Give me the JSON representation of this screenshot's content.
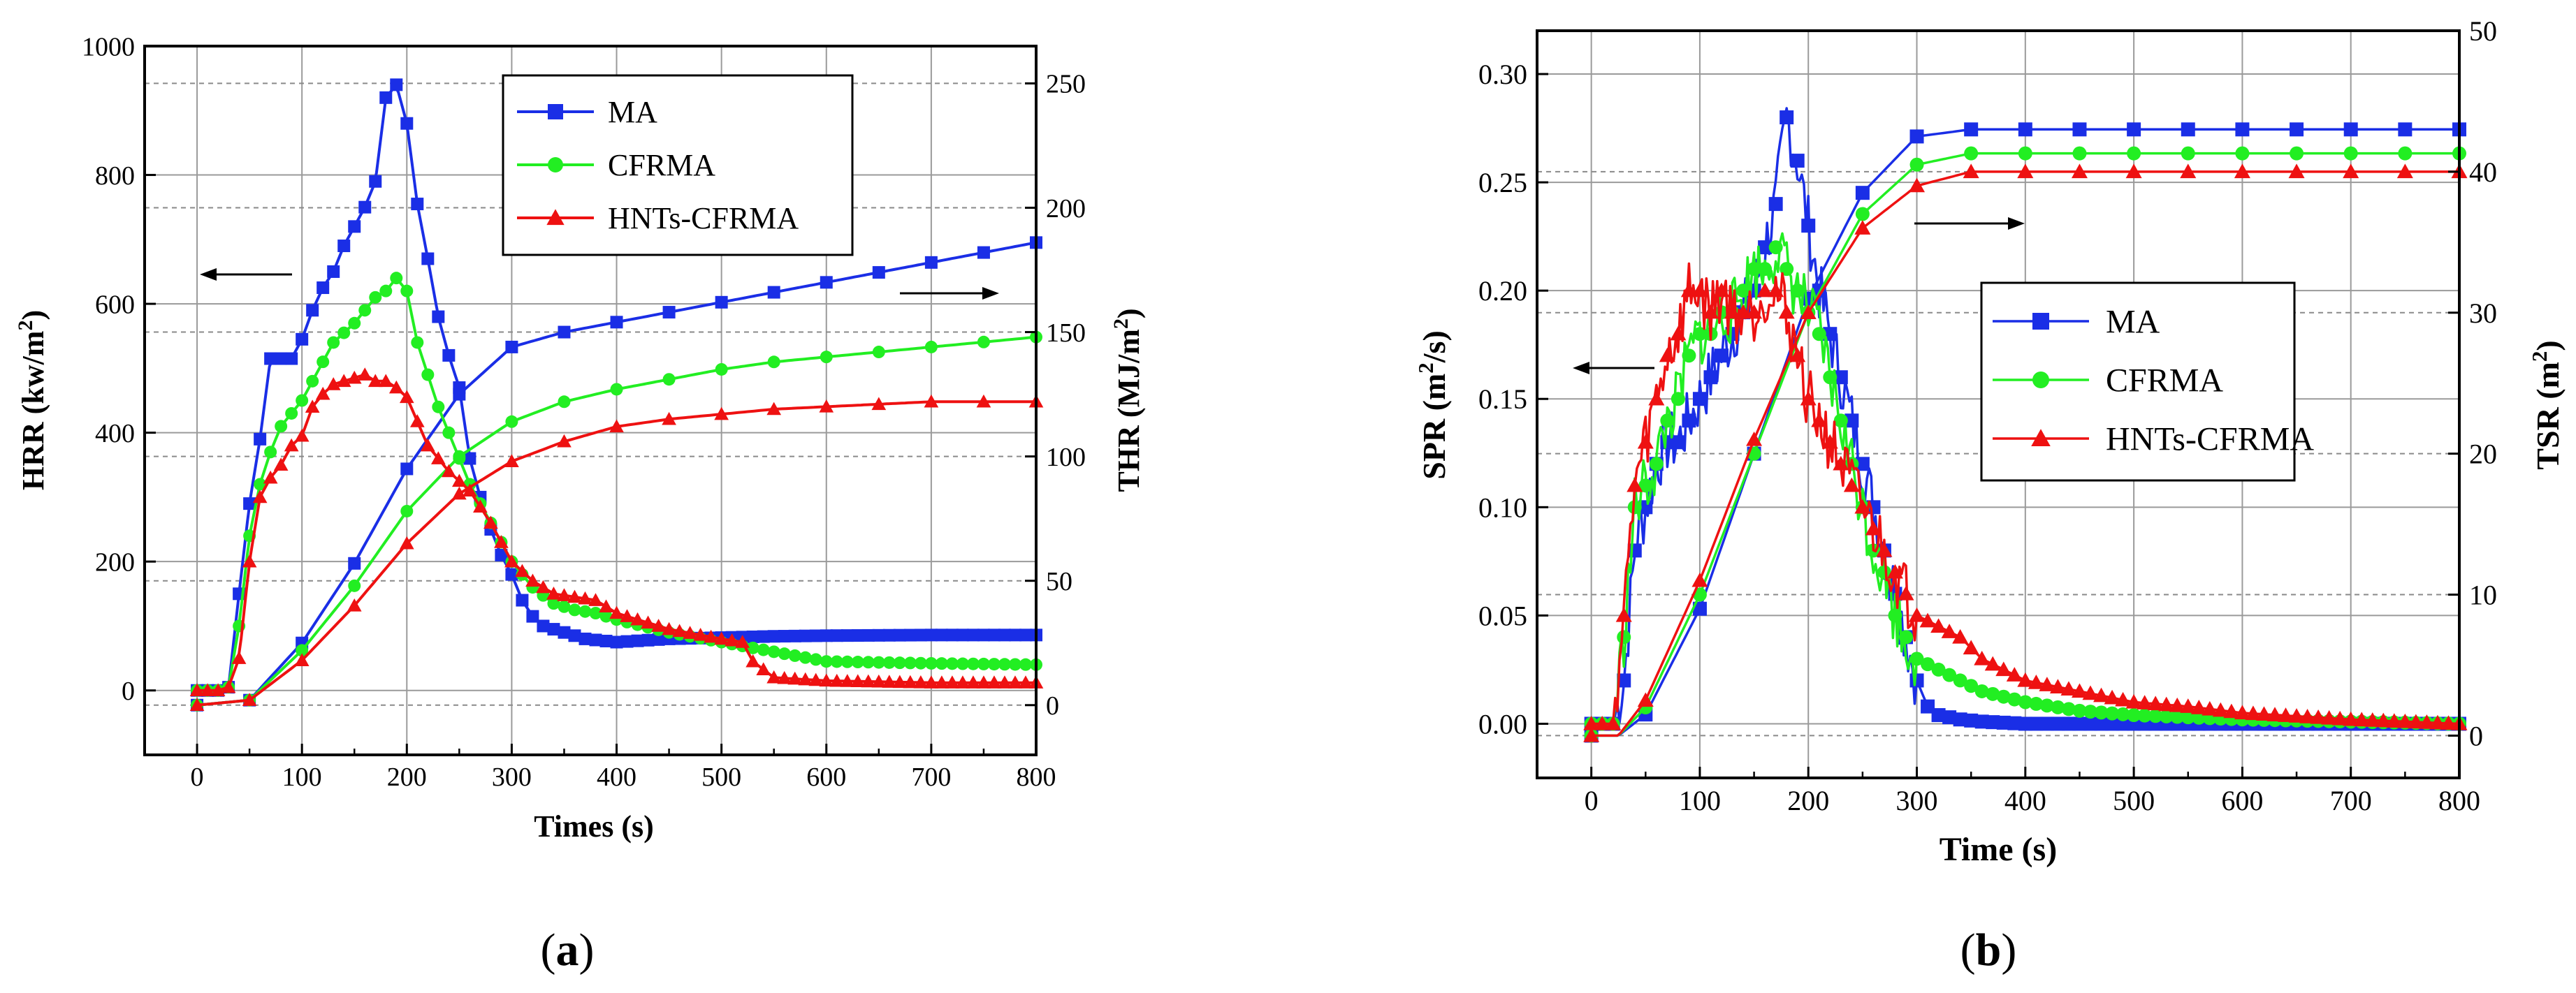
{
  "chart_data": [
    {
      "id": "a",
      "type": "line",
      "panel_label": "(a)",
      "panel_label_letter": "a",
      "colors": {
        "MA": "#1a2ee6",
        "CFRMA": "#22ee22",
        "HNTs-CFRMA": "#ee1111"
      },
      "xlabel": "Times (s)",
      "ylabel_left": "HRR (kw/m",
      "ylabel_left_sup": "2",
      "ylabel_left_end": ")",
      "ylabel_right": "THR (MJ/m",
      "ylabel_right_sup": "2",
      "ylabel_right_end": ")",
      "xlim": [
        -50,
        800
      ],
      "ylim_left": [
        -100,
        1000
      ],
      "ylim_right": [
        -20,
        265
      ],
      "xticks": [
        0,
        100,
        200,
        300,
        400,
        500,
        600,
        700,
        800
      ],
      "yticks_left": [
        0,
        200,
        400,
        600,
        800,
        1000
      ],
      "yticks_right": [
        0,
        50,
        100,
        150,
        200,
        250
      ],
      "legend": [
        "MA",
        "CFRMA",
        "HNTs-CFRMA"
      ],
      "annotations": [
        "arrow pointing left to HRR axis",
        "arrow pointing right to THR axis"
      ],
      "series": [
        {
          "name": "MA",
          "axis": "left",
          "role": "HRR",
          "x": [
            0,
            20,
            30,
            40,
            50,
            60,
            70,
            80,
            90,
            100,
            110,
            120,
            130,
            140,
            150,
            160,
            170,
            180,
            190,
            200,
            210,
            220,
            230,
            240,
            250,
            260,
            270,
            280,
            290,
            300,
            310,
            320,
            330,
            340,
            350,
            370,
            400,
            450,
            500,
            550,
            600,
            700,
            800
          ],
          "y": [
            0,
            0,
            5,
            150,
            290,
            390,
            515,
            515,
            515,
            545,
            590,
            625,
            650,
            690,
            720,
            750,
            790,
            920,
            940,
            880,
            755,
            670,
            580,
            520,
            470,
            360,
            300,
            250,
            210,
            180,
            140,
            115,
            100,
            95,
            90,
            80,
            75,
            80,
            82,
            84,
            85,
            86,
            86
          ]
        },
        {
          "name": "MA",
          "axis": "right",
          "role": "THR",
          "x": [
            0,
            50,
            100,
            150,
            200,
            250,
            300,
            350,
            400,
            450,
            500,
            550,
            600,
            650,
            700,
            750,
            800
          ],
          "y": [
            0,
            2,
            25,
            57,
            95,
            125,
            144,
            150,
            154,
            158,
            162,
            166,
            170,
            174,
            178,
            182,
            186
          ]
        },
        {
          "name": "CFRMA",
          "axis": "left",
          "role": "HRR",
          "x": [
            0,
            20,
            30,
            40,
            50,
            60,
            70,
            80,
            90,
            100,
            110,
            120,
            130,
            140,
            150,
            160,
            170,
            180,
            190,
            200,
            210,
            220,
            230,
            240,
            250,
            260,
            270,
            280,
            290,
            300,
            320,
            340,
            360,
            380,
            400,
            450,
            500,
            550,
            600,
            700,
            800
          ],
          "y": [
            0,
            0,
            5,
            100,
            240,
            320,
            370,
            410,
            430,
            450,
            480,
            510,
            540,
            555,
            570,
            590,
            610,
            620,
            640,
            620,
            540,
            490,
            440,
            400,
            360,
            320,
            290,
            260,
            230,
            200,
            160,
            135,
            125,
            120,
            110,
            90,
            75,
            60,
            45,
            42,
            40
          ]
        },
        {
          "name": "CFRMA",
          "axis": "right",
          "role": "THR",
          "x": [
            0,
            50,
            100,
            150,
            200,
            250,
            300,
            350,
            400,
            450,
            500,
            550,
            600,
            650,
            700,
            750,
            800
          ],
          "y": [
            0,
            2,
            22,
            48,
            78,
            100,
            114,
            122,
            127,
            131,
            135,
            138,
            140,
            142,
            144,
            146,
            148
          ]
        },
        {
          "name": "HNTs-CFRMA",
          "axis": "left",
          "role": "HRR",
          "x": [
            0,
            20,
            30,
            40,
            50,
            60,
            70,
            80,
            90,
            100,
            110,
            120,
            130,
            140,
            150,
            160,
            170,
            180,
            190,
            200,
            220,
            240,
            260,
            280,
            300,
            320,
            340,
            360,
            380,
            400,
            450,
            500,
            520,
            530,
            550,
            600,
            700,
            800
          ],
          "y": [
            0,
            0,
            5,
            50,
            200,
            300,
            330,
            350,
            380,
            395,
            440,
            460,
            475,
            480,
            485,
            490,
            480,
            480,
            470,
            455,
            380,
            340,
            310,
            260,
            200,
            170,
            150,
            145,
            140,
            120,
            95,
            80,
            75,
            45,
            20,
            15,
            12,
            12
          ]
        },
        {
          "name": "HNTs-CFRMA",
          "axis": "right",
          "role": "THR",
          "x": [
            0,
            50,
            100,
            150,
            200,
            250,
            300,
            350,
            400,
            450,
            500,
            550,
            600,
            650,
            700,
            750,
            800
          ],
          "y": [
            0,
            2,
            18,
            40,
            65,
            85,
            98,
            106,
            112,
            115,
            117,
            119,
            120,
            121,
            122,
            122,
            122
          ]
        }
      ]
    },
    {
      "id": "b",
      "type": "line",
      "panel_label": "(b)",
      "panel_label_letter": "b",
      "colors": {
        "MA": "#1a2ee6",
        "CFRMA": "#22ee22",
        "HNTs-CFRMA": "#ee1111"
      },
      "xlabel": "Time (s)",
      "ylabel_left": "SPR (m",
      "ylabel_left_sup": "2",
      "ylabel_left_end": "/s)",
      "ylabel_right": "TSR (m",
      "ylabel_right_sup": "2",
      "ylabel_right_end": ")",
      "xlim": [
        -50,
        800
      ],
      "ylim_left": [
        -0.025,
        0.32
      ],
      "ylim_right": [
        -3,
        50
      ],
      "xticks": [
        0,
        100,
        200,
        300,
        400,
        500,
        600,
        700,
        800
      ],
      "yticks_left": [
        0.0,
        0.05,
        0.1,
        0.15,
        0.2,
        0.25,
        0.3
      ],
      "yticks_left_labels": [
        "0.00",
        "0.05",
        "0.10",
        "0.15",
        "0.20",
        "0.25",
        "0.30"
      ],
      "yticks_right": [
        0,
        10,
        20,
        30,
        40,
        50
      ],
      "legend": [
        "MA",
        "CFRMA",
        "HNTs-CFRMA"
      ],
      "annotations": [
        "arrow pointing left to SPR axis",
        "arrow pointing right to TSR axis"
      ],
      "series": [
        {
          "name": "MA",
          "axis": "left",
          "role": "SPR",
          "x": [
            0,
            10,
            20,
            30,
            40,
            50,
            60,
            70,
            80,
            90,
            100,
            110,
            120,
            130,
            140,
            150,
            160,
            170,
            180,
            190,
            200,
            210,
            220,
            230,
            240,
            250,
            260,
            270,
            280,
            290,
            300,
            310,
            320,
            340,
            360,
            400,
            500,
            600,
            700,
            800
          ],
          "y": [
            0,
            0,
            0,
            0.02,
            0.08,
            0.1,
            0.12,
            0.13,
            0.13,
            0.14,
            0.15,
            0.16,
            0.17,
            0.18,
            0.19,
            0.2,
            0.22,
            0.24,
            0.28,
            0.26,
            0.23,
            0.2,
            0.18,
            0.16,
            0.14,
            0.12,
            0.1,
            0.08,
            0.06,
            0.04,
            0.02,
            0.008,
            0.004,
            0.002,
            0.001,
            0,
            0,
            0,
            0,
            0
          ]
        },
        {
          "name": "MA",
          "axis": "right",
          "role": "TSR",
          "x": [
            0,
            25,
            50,
            100,
            150,
            200,
            250,
            300,
            350,
            400,
            500,
            600,
            700,
            800
          ],
          "y": [
            0,
            0,
            1.5,
            9,
            20,
            31,
            38.5,
            42.5,
            43,
            43,
            43,
            43,
            43,
            43
          ]
        },
        {
          "name": "CFRMA",
          "axis": "left",
          "role": "SPR",
          "x": [
            0,
            10,
            20,
            30,
            40,
            50,
            60,
            70,
            80,
            90,
            100,
            110,
            120,
            130,
            140,
            150,
            160,
            170,
            180,
            190,
            200,
            210,
            220,
            230,
            240,
            250,
            260,
            270,
            280,
            290,
            300,
            320,
            340,
            360,
            400,
            450,
            500,
            550,
            600,
            700,
            800
          ],
          "y": [
            0,
            0,
            0,
            0.04,
            0.1,
            0.11,
            0.12,
            0.14,
            0.15,
            0.17,
            0.18,
            0.18,
            0.19,
            0.19,
            0.2,
            0.21,
            0.21,
            0.22,
            0.21,
            0.2,
            0.19,
            0.18,
            0.16,
            0.14,
            0.12,
            0.1,
            0.08,
            0.07,
            0.05,
            0.04,
            0.03,
            0.025,
            0.02,
            0.015,
            0.01,
            0.006,
            0.004,
            0.003,
            0.002,
            0.001,
            0
          ]
        },
        {
          "name": "CFRMA",
          "axis": "right",
          "role": "TSR",
          "x": [
            0,
            25,
            50,
            100,
            150,
            200,
            250,
            300,
            350,
            400,
            500,
            600,
            700,
            800
          ],
          "y": [
            0,
            0,
            2,
            10,
            20,
            30,
            37,
            40.5,
            41.3,
            41.3,
            41.3,
            41.3,
            41.3,
            41.3
          ]
        },
        {
          "name": "HNTs-CFRMA",
          "axis": "left",
          "role": "SPR",
          "x": [
            0,
            10,
            20,
            30,
            40,
            50,
            60,
            70,
            80,
            90,
            100,
            110,
            120,
            130,
            140,
            150,
            160,
            170,
            180,
            190,
            200,
            210,
            220,
            230,
            240,
            250,
            260,
            270,
            280,
            290,
            300,
            320,
            340,
            360,
            380,
            400,
            450,
            500,
            550,
            600,
            700,
            800
          ],
          "y": [
            0,
            0,
            0,
            0.05,
            0.11,
            0.13,
            0.15,
            0.17,
            0.18,
            0.2,
            0.2,
            0.19,
            0.2,
            0.19,
            0.19,
            0.19,
            0.2,
            0.2,
            0.19,
            0.17,
            0.15,
            0.14,
            0.13,
            0.12,
            0.11,
            0.1,
            0.09,
            0.08,
            0.07,
            0.06,
            0.05,
            0.045,
            0.04,
            0.03,
            0.025,
            0.02,
            0.015,
            0.01,
            0.008,
            0.005,
            0.002,
            0
          ]
        },
        {
          "name": "HNTs-CFRMA",
          "axis": "right",
          "role": "TSR",
          "x": [
            0,
            25,
            50,
            100,
            150,
            200,
            250,
            300,
            350,
            400,
            500,
            600,
            700,
            800
          ],
          "y": [
            0,
            0,
            2.5,
            11,
            21,
            30,
            36,
            39,
            40,
            40,
            40,
            40,
            40,
            40
          ]
        }
      ]
    }
  ]
}
